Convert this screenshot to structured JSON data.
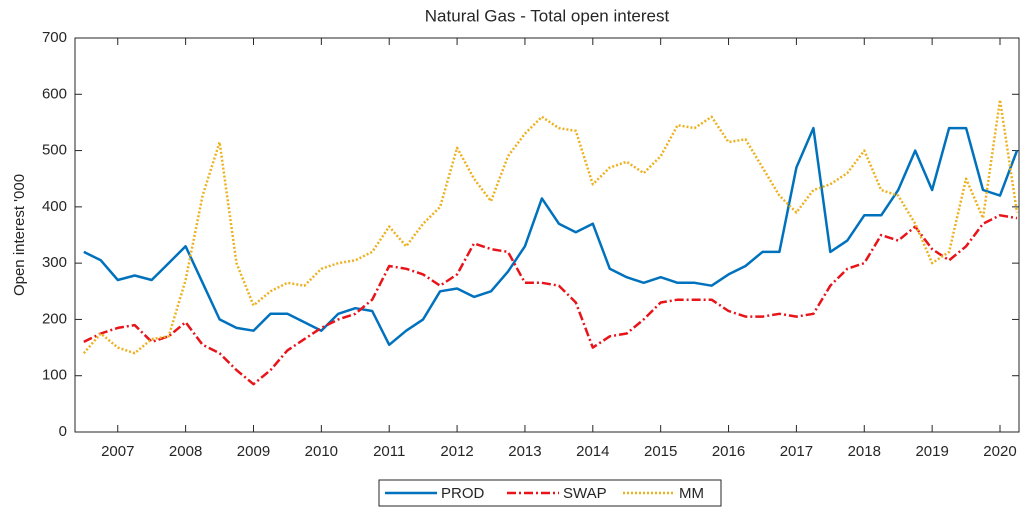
{
  "chart_data": {
    "type": "line",
    "title": "Natural Gas - Total open interest",
    "ylabel": "Open interest '000",
    "x": [
      2006.5,
      2006.75,
      2007,
      2007.25,
      2007.5,
      2007.75,
      2008,
      2008.25,
      2008.5,
      2008.75,
      2009,
      2009.25,
      2009.5,
      2009.75,
      2010,
      2010.25,
      2010.5,
      2010.75,
      2011,
      2011.25,
      2011.5,
      2011.75,
      2012,
      2012.25,
      2012.5,
      2012.75,
      2013,
      2013.25,
      2013.5,
      2013.75,
      2014,
      2014.25,
      2014.5,
      2014.75,
      2015,
      2015.25,
      2015.5,
      2015.75,
      2016,
      2016.25,
      2016.5,
      2016.75,
      2017,
      2017.25,
      2017.5,
      2017.75,
      2018,
      2018.25,
      2018.5,
      2018.75,
      2019,
      2019.25,
      2019.5,
      2019.75,
      2020,
      2020.25
    ],
    "series": [
      {
        "name": "PROD",
        "color": "#0072bd",
        "style": "solid",
        "values": [
          320,
          305,
          270,
          278,
          270,
          300,
          330,
          265,
          200,
          185,
          180,
          210,
          210,
          195,
          180,
          210,
          220,
          215,
          155,
          180,
          200,
          250,
          255,
          240,
          250,
          285,
          330,
          415,
          370,
          355,
          370,
          290,
          275,
          265,
          275,
          265,
          265,
          260,
          280,
          295,
          320,
          320,
          470,
          540,
          320,
          340,
          385,
          385,
          430,
          500,
          430,
          540,
          540,
          430,
          420,
          500
        ]
      },
      {
        "name": "SWAP",
        "color": "#e8141a",
        "style": "dashdot",
        "values": [
          160,
          175,
          185,
          190,
          160,
          170,
          195,
          155,
          140,
          110,
          85,
          110,
          145,
          165,
          185,
          200,
          210,
          235,
          295,
          290,
          280,
          260,
          280,
          335,
          325,
          320,
          265,
          265,
          260,
          230,
          150,
          170,
          175,
          200,
          230,
          235,
          235,
          235,
          215,
          205,
          205,
          210,
          205,
          210,
          260,
          290,
          300,
          350,
          340,
          365,
          325,
          305,
          330,
          370,
          385,
          380
        ]
      },
      {
        "name": "MM",
        "color": "#edb120",
        "style": "dotted",
        "values": [
          140,
          175,
          150,
          140,
          165,
          170,
          270,
          420,
          515,
          300,
          225,
          250,
          265,
          260,
          290,
          300,
          305,
          320,
          365,
          330,
          370,
          400,
          505,
          450,
          410,
          490,
          530,
          560,
          540,
          535,
          440,
          470,
          480,
          460,
          490,
          545,
          540,
          560,
          515,
          520,
          470,
          420,
          390,
          430,
          440,
          460,
          500,
          430,
          420,
          370,
          300,
          320,
          450,
          380,
          590,
          390
        ]
      }
    ],
    "xlim": [
      2006.37,
      2020.28
    ],
    "xticks": [
      2007,
      2008,
      2009,
      2010,
      2011,
      2012,
      2013,
      2014,
      2015,
      2016,
      2017,
      2018,
      2019,
      2020
    ],
    "ylim": [
      0,
      700
    ],
    "yticks": [
      0,
      100,
      200,
      300,
      400,
      500,
      600,
      700
    ],
    "legend": "bottom"
  }
}
